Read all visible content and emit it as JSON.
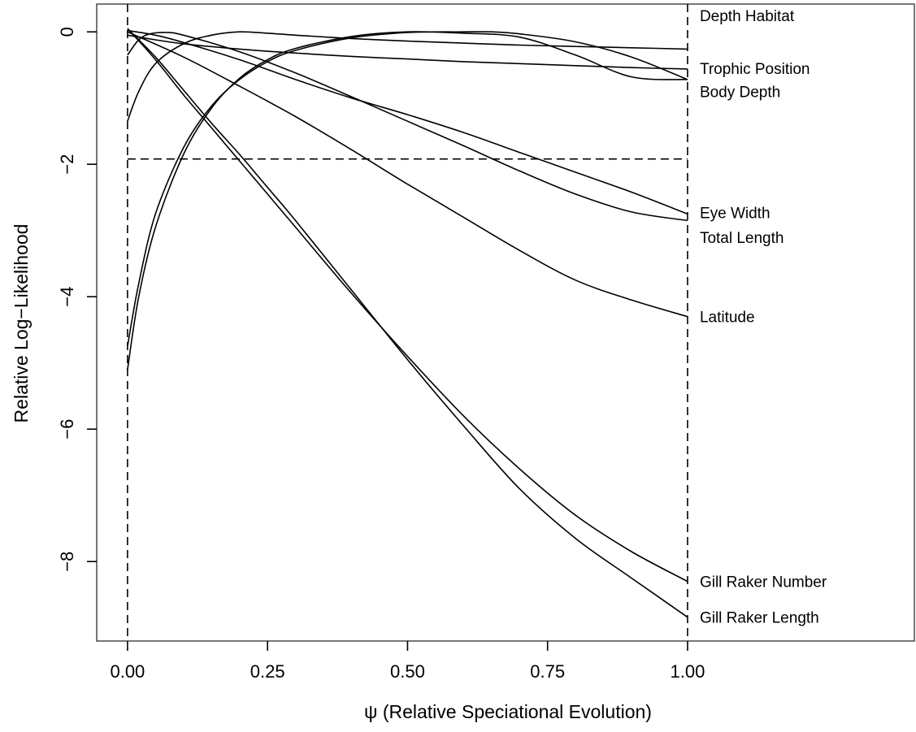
{
  "chart_data": {
    "type": "line",
    "title": "",
    "xlabel": "ψ (Relative Speciational Evolution)",
    "ylabel": "Relative Log−Likelihood",
    "xlim": [
      -0.055,
      1.405
    ],
    "ylim": [
      -9.2,
      0.42
    ],
    "x_ticks": [
      0.0,
      0.25,
      0.5,
      0.75,
      1.0
    ],
    "x_tick_labels": [
      "0.00",
      "0.25",
      "0.50",
      "0.75",
      "1.00"
    ],
    "y_ticks": [
      0,
      -2,
      -4,
      -6,
      -8
    ],
    "y_tick_labels": [
      "0",
      "−2",
      "−4",
      "−6",
      "−8"
    ],
    "grid": false,
    "legend": "none",
    "reference_lines": {
      "vertical_x": [
        0.0,
        1.0
      ],
      "horizontal_y": -1.92
    },
    "series": [
      {
        "name": "Depth Habitat",
        "label_y": 0.25,
        "points": [
          [
            0,
            -1.35
          ],
          [
            0.02,
            -0.9
          ],
          [
            0.05,
            -0.48
          ],
          [
            0.1,
            -0.18
          ],
          [
            0.15,
            -0.05
          ],
          [
            0.2,
            0
          ],
          [
            0.25,
            -0.02
          ],
          [
            0.3,
            -0.05
          ],
          [
            0.4,
            -0.1
          ],
          [
            0.5,
            -0.14
          ],
          [
            0.6,
            -0.17
          ],
          [
            0.7,
            -0.2
          ],
          [
            0.8,
            -0.22
          ],
          [
            0.9,
            -0.24
          ],
          [
            1,
            -0.26
          ]
        ]
      },
      {
        "name": "Trophic Position",
        "label_y": -0.55,
        "points": [
          [
            0,
            -0.05
          ],
          [
            0.05,
            -0.12
          ],
          [
            0.1,
            -0.18
          ],
          [
            0.2,
            -0.26
          ],
          [
            0.3,
            -0.32
          ],
          [
            0.4,
            -0.37
          ],
          [
            0.5,
            -0.41
          ],
          [
            0.6,
            -0.45
          ],
          [
            0.7,
            -0.48
          ],
          [
            0.8,
            -0.51
          ],
          [
            0.9,
            -0.54
          ],
          [
            1,
            -0.56
          ]
        ]
      },
      {
        "name": "Body Depth",
        "label_y": -0.9,
        "points": [
          [
            0,
            -4.75
          ],
          [
            0.02,
            -3.8
          ],
          [
            0.05,
            -2.75
          ],
          [
            0.1,
            -1.75
          ],
          [
            0.15,
            -1.12
          ],
          [
            0.2,
            -0.72
          ],
          [
            0.25,
            -0.45
          ],
          [
            0.3,
            -0.28
          ],
          [
            0.4,
            -0.09
          ],
          [
            0.5,
            -0.01
          ],
          [
            0.6,
            0
          ],
          [
            0.65,
            0
          ],
          [
            0.7,
            -0.03
          ],
          [
            0.8,
            -0.15
          ],
          [
            0.9,
            -0.38
          ],
          [
            1,
            -0.72
          ]
        ]
      },
      {
        "name": "Eye Width",
        "label_y": -2.73,
        "points": [
          [
            0,
            0.02
          ],
          [
            0.05,
            -0.05
          ],
          [
            0.1,
            -0.16
          ],
          [
            0.2,
            -0.42
          ],
          [
            0.3,
            -0.72
          ],
          [
            0.4,
            -1.0
          ],
          [
            0.5,
            -1.25
          ],
          [
            0.6,
            -1.52
          ],
          [
            0.7,
            -1.82
          ],
          [
            0.8,
            -2.12
          ],
          [
            0.9,
            -2.42
          ],
          [
            1,
            -2.75
          ]
        ]
      },
      {
        "name": "Total Length",
        "label_y": -3.1,
        "points": [
          [
            0,
            -0.35
          ],
          [
            0.02,
            -0.12
          ],
          [
            0.04,
            -0.03
          ],
          [
            0.07,
            -0.01
          ],
          [
            0.1,
            -0.05
          ],
          [
            0.2,
            -0.3
          ],
          [
            0.3,
            -0.62
          ],
          [
            0.4,
            -0.98
          ],
          [
            0.5,
            -1.35
          ],
          [
            0.6,
            -1.72
          ],
          [
            0.7,
            -2.1
          ],
          [
            0.8,
            -2.45
          ],
          [
            0.9,
            -2.72
          ],
          [
            1,
            -2.85
          ]
        ]
      },
      {
        "name": "Latitude",
        "label_y": -4.3,
        "points": [
          [
            0,
            0
          ],
          [
            0.1,
            -0.38
          ],
          [
            0.2,
            -0.82
          ],
          [
            0.3,
            -1.28
          ],
          [
            0.4,
            -1.78
          ],
          [
            0.5,
            -2.3
          ],
          [
            0.6,
            -2.8
          ],
          [
            0.7,
            -3.3
          ],
          [
            0.8,
            -3.75
          ],
          [
            0.9,
            -4.05
          ],
          [
            1,
            -4.3
          ]
        ]
      },
      {
        "name": "Gill Raker Number",
        "label_y": -8.3,
        "points": [
          [
            0,
            -5.1
          ],
          [
            0.02,
            -4.0
          ],
          [
            0.05,
            -2.95
          ],
          [
            0.1,
            -1.85
          ],
          [
            0.15,
            -1.15
          ],
          [
            0.2,
            -0.7
          ],
          [
            0.25,
            -0.42
          ],
          [
            0.3,
            -0.25
          ],
          [
            0.4,
            -0.07
          ],
          [
            0.5,
            0
          ],
          [
            0.6,
            -0.02
          ],
          [
            0.7,
            -0.08
          ],
          [
            0.8,
            -0.35
          ],
          [
            0.9,
            -0.68
          ],
          [
            1,
            -0.72
          ]
        ]
      },
      {
        "name": "Gill Raker Length",
        "label_y": -8.84,
        "points": [
          [
            0,
            0.05
          ],
          [
            0.05,
            -0.42
          ],
          [
            0.1,
            -0.95
          ],
          [
            0.15,
            -1.45
          ],
          [
            0.2,
            -1.95
          ],
          [
            0.25,
            -2.45
          ],
          [
            0.3,
            -2.95
          ],
          [
            0.4,
            -3.95
          ],
          [
            0.5,
            -4.9
          ],
          [
            0.6,
            -5.8
          ],
          [
            0.7,
            -6.6
          ],
          [
            0.8,
            -7.3
          ],
          [
            0.9,
            -7.85
          ],
          [
            1,
            -8.3
          ]
        ]
      },
      {
        "name": "",
        "label_y": null,
        "points": [
          [
            0,
            0.05
          ],
          [
            0.05,
            -0.38
          ],
          [
            0.1,
            -0.88
          ],
          [
            0.15,
            -1.38
          ],
          [
            0.2,
            -1.85
          ],
          [
            0.25,
            -2.35
          ],
          [
            0.3,
            -2.85
          ],
          [
            0.4,
            -3.9
          ],
          [
            0.5,
            -4.95
          ],
          [
            0.6,
            -5.95
          ],
          [
            0.7,
            -6.9
          ],
          [
            0.8,
            -7.65
          ],
          [
            0.9,
            -8.25
          ],
          [
            1,
            -8.84
          ]
        ]
      }
    ]
  }
}
